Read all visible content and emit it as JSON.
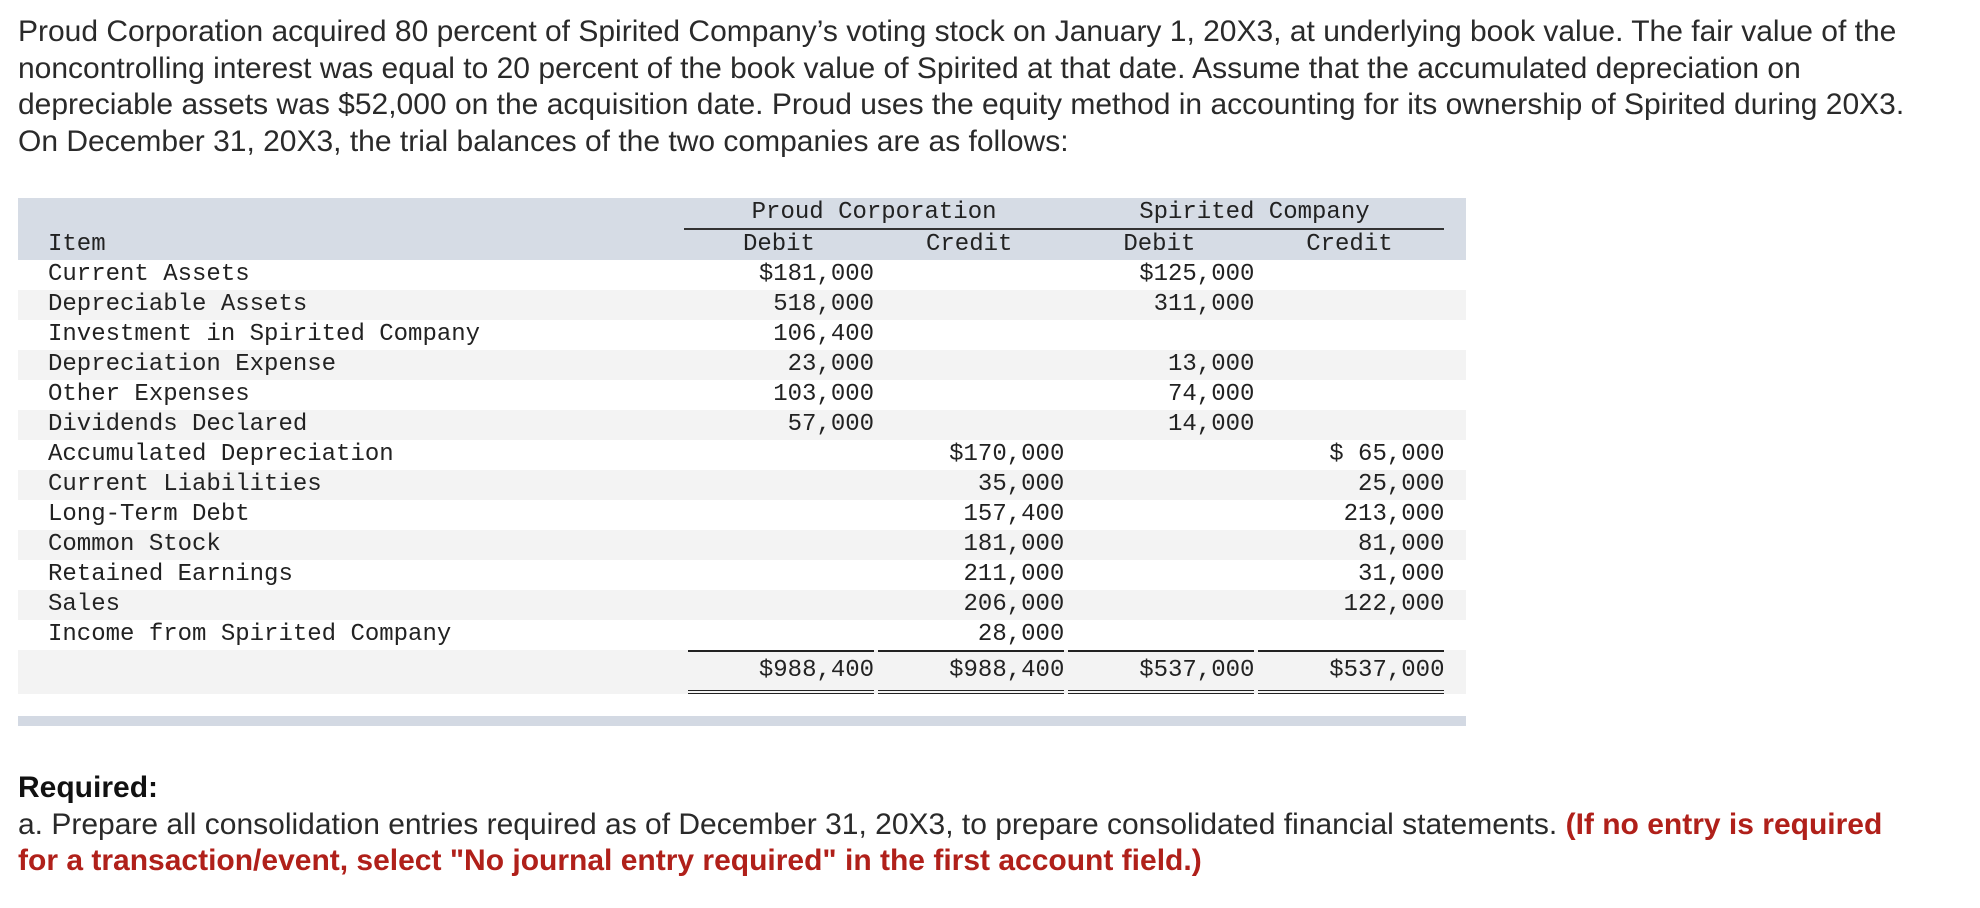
{
  "problem": {
    "intro": "Proud Corporation acquired 80 percent of Spirited Company’s voting stock on January 1, 20X3, at underlying book value. The fair value of the noncontrolling interest was equal to 20 percent of the book value of Spirited at that date. Assume that the accumulated depreciation on depreciable assets was $52,000 on the acquisition date. Proud uses the equity method in accounting for its ownership of Spirited during 20X3. On December 31, 20X3, the trial balances of the two companies are as follows:"
  },
  "trial_balance": {
    "group_headers": [
      "Proud Corporation",
      "Spirited Company"
    ],
    "col_item": "Item",
    "sub_headers": [
      "Debit",
      "Credit",
      "Debit",
      "Credit"
    ],
    "rows": [
      {
        "item": "Current Assets",
        "p_debit": "$181,000",
        "p_credit": "",
        "s_debit": "$125,000",
        "s_credit": ""
      },
      {
        "item": "Depreciable Assets",
        "p_debit": "518,000",
        "p_credit": "",
        "s_debit": "311,000",
        "s_credit": ""
      },
      {
        "item": "Investment in Spirited Company",
        "p_debit": "106,400",
        "p_credit": "",
        "s_debit": "",
        "s_credit": ""
      },
      {
        "item": "Depreciation Expense",
        "p_debit": "23,000",
        "p_credit": "",
        "s_debit": "13,000",
        "s_credit": ""
      },
      {
        "item": "Other Expenses",
        "p_debit": "103,000",
        "p_credit": "",
        "s_debit": "74,000",
        "s_credit": ""
      },
      {
        "item": "Dividends Declared",
        "p_debit": "57,000",
        "p_credit": "",
        "s_debit": "14,000",
        "s_credit": ""
      },
      {
        "item": "Accumulated Depreciation",
        "p_debit": "",
        "p_credit": "$170,000",
        "s_debit": "",
        "s_credit": "$ 65,000"
      },
      {
        "item": "Current Liabilities",
        "p_debit": "",
        "p_credit": "35,000",
        "s_debit": "",
        "s_credit": "25,000"
      },
      {
        "item": "Long-Term Debt",
        "p_debit": "",
        "p_credit": "157,400",
        "s_debit": "",
        "s_credit": "213,000"
      },
      {
        "item": "Common Stock",
        "p_debit": "",
        "p_credit": "181,000",
        "s_debit": "",
        "s_credit": "81,000"
      },
      {
        "item": "Retained Earnings",
        "p_debit": "",
        "p_credit": "211,000",
        "s_debit": "",
        "s_credit": "31,000"
      },
      {
        "item": "Sales",
        "p_debit": "",
        "p_credit": "206,000",
        "s_debit": "",
        "s_credit": "122,000"
      },
      {
        "item": "Income from Spirited Company",
        "p_debit": "",
        "p_credit": "28,000",
        "s_debit": "",
        "s_credit": ""
      }
    ],
    "totals": {
      "p_debit": "$988,400",
      "p_credit": "$988,400",
      "s_debit": "$537,000",
      "s_credit": "$537,000"
    }
  },
  "required": {
    "heading": "Required:",
    "text": "a. Prepare all consolidation entries required as of December 31, 20X3, to prepare consolidated financial statements.",
    "note": "(If no entry is required for a transaction/event, select \"No journal entry required\" in the first account field.)"
  }
}
